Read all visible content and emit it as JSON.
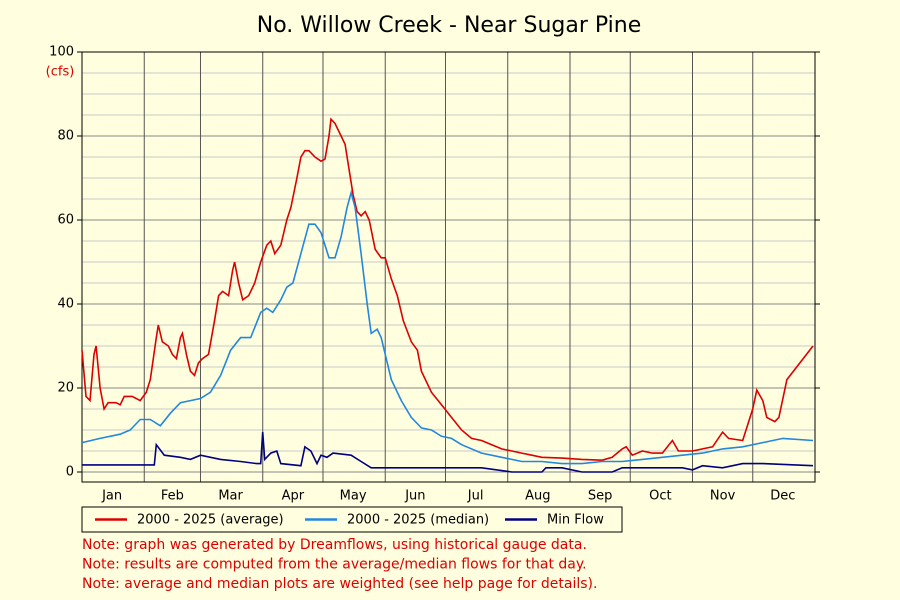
{
  "chart_data": {
    "type": "line",
    "title": "No. Willow Creek - Near Sugar Pine",
    "y_label": "(cfs)",
    "xlim": [
      1,
      366
    ],
    "xticks": [
      {
        "value": 16,
        "label": "Jan"
      },
      {
        "value": 46,
        "label": "Feb"
      },
      {
        "value": 75,
        "label": "Mar"
      },
      {
        "value": 106,
        "label": "Apr"
      },
      {
        "value": 136,
        "label": "May"
      },
      {
        "value": 167,
        "label": "Jun"
      },
      {
        "value": 197,
        "label": "Jul"
      },
      {
        "value": 228,
        "label": "Aug"
      },
      {
        "value": 259,
        "label": "Sep"
      },
      {
        "value": 289,
        "label": "Oct"
      },
      {
        "value": 320,
        "label": "Nov"
      },
      {
        "value": 350,
        "label": "Dec"
      }
    ],
    "xgrid": [
      1,
      32,
      60,
      91,
      121,
      152,
      182,
      213,
      244,
      274,
      305,
      335,
      366
    ],
    "ylim": [
      0,
      100
    ],
    "yticks": [
      0,
      20,
      40,
      60,
      80,
      100
    ],
    "y_minor_grid": [
      5,
      10,
      15,
      25,
      30,
      35,
      45,
      50,
      55,
      65,
      70,
      75,
      85,
      90,
      95
    ],
    "grid": true,
    "series": [
      {
        "name": "2000 - 2025 (average)",
        "color": "#dd0000",
        "x": [
          1,
          3,
          5,
          7,
          8,
          10,
          12,
          14,
          18,
          20,
          22,
          26,
          30,
          33,
          35,
          38,
          39,
          41,
          44,
          46,
          48,
          50,
          51,
          53,
          55,
          57,
          59,
          61,
          64,
          67,
          69,
          71,
          74,
          76,
          77,
          79,
          81,
          84,
          87,
          90,
          93,
          95,
          97,
          100,
          103,
          105,
          108,
          110,
          112,
          114,
          117,
          120,
          122,
          124,
          125,
          127,
          130,
          132,
          134,
          136,
          138,
          140,
          142,
          144,
          147,
          150,
          152,
          155,
          158,
          161,
          165,
          168,
          170,
          175,
          180,
          185,
          190,
          195,
          200,
          205,
          210,
          215,
          220,
          225,
          230,
          240,
          250,
          260,
          265,
          270,
          272,
          275,
          280,
          285,
          290,
          295,
          298,
          305,
          310,
          315,
          320,
          323,
          330,
          335,
          337,
          340,
          342,
          346,
          348,
          352,
          365
        ],
        "values": [
          29,
          18,
          17,
          28,
          30,
          20,
          15,
          16.5,
          16.5,
          16,
          18,
          18,
          17,
          19,
          22,
          32,
          35,
          31,
          30,
          28,
          27,
          32,
          33,
          28,
          24,
          23,
          26,
          27,
          28,
          36,
          42,
          43,
          42,
          48,
          50,
          45,
          41,
          42,
          45,
          50,
          54,
          55,
          52,
          54,
          60,
          63,
          70,
          75,
          76.5,
          76.5,
          75,
          74,
          74.5,
          80,
          84,
          83,
          80,
          78,
          72,
          66,
          62,
          61,
          62,
          60,
          53,
          51,
          51,
          46,
          42,
          36,
          31,
          29,
          24,
          19,
          16,
          13,
          10,
          8,
          7.5,
          6.5,
          5.5,
          5,
          4.5,
          4,
          3.5,
          3.3,
          3,
          2.8,
          3.5,
          5.5,
          6,
          4,
          5,
          4.5,
          4.5,
          7.5,
          5,
          5,
          5.5,
          6,
          9.5,
          8,
          7.5,
          15,
          19.5,
          17,
          13,
          12,
          13,
          22,
          30
        ]
      },
      {
        "name": "2000 - 2025 (median)",
        "color": "#2288dd",
        "x": [
          1,
          10,
          20,
          25,
          30,
          35,
          40,
          45,
          50,
          55,
          60,
          65,
          70,
          75,
          80,
          85,
          90,
          93,
          96,
          100,
          103,
          106,
          110,
          114,
          117,
          120,
          124,
          127,
          130,
          133,
          135,
          137,
          140,
          143,
          145,
          148,
          150,
          155,
          160,
          165,
          170,
          175,
          180,
          185,
          190,
          200,
          210,
          220,
          230,
          240,
          250,
          260,
          270,
          280,
          290,
          300,
          310,
          320,
          330,
          340,
          350,
          365
        ],
        "values": [
          7,
          8,
          9,
          10,
          12.5,
          12.5,
          11,
          14,
          16.5,
          17,
          17.5,
          19,
          23,
          29,
          32,
          32,
          38,
          39,
          38,
          41,
          44,
          45,
          52,
          59,
          59,
          57,
          51,
          51,
          56,
          63,
          66.5,
          63,
          52,
          40,
          33,
          34,
          32,
          22,
          17,
          13,
          10.5,
          10,
          8.5,
          8,
          6.5,
          4.5,
          3.5,
          2.5,
          2.5,
          2,
          2,
          2.5,
          2.5,
          3,
          3.5,
          4,
          4.5,
          5.5,
          6,
          7,
          8,
          7.5
        ]
      },
      {
        "name": "Min Flow",
        "color": "#000080",
        "x": [
          1,
          30,
          37,
          38,
          42,
          50,
          55,
          60,
          70,
          80,
          88,
          90,
          91,
          92,
          95,
          98,
          100,
          110,
          112,
          115,
          118,
          120,
          123,
          126,
          135,
          140,
          145,
          150,
          160,
          200,
          215,
          230,
          232,
          240,
          250,
          265,
          270,
          300,
          305,
          310,
          320,
          330,
          340,
          365
        ],
        "values": [
          1.7,
          1.7,
          1.7,
          6.5,
          4,
          3.5,
          3,
          4,
          3,
          2.5,
          2,
          2,
          9.5,
          3,
          4.5,
          5,
          2,
          1.5,
          6,
          5,
          2,
          4,
          3.5,
          4.5,
          4,
          2.5,
          1,
          1,
          1,
          1,
          0,
          0,
          1,
          1,
          0,
          0,
          1,
          1,
          0.5,
          1.5,
          1,
          2,
          2,
          1.5
        ]
      }
    ],
    "legend": "bottom-left",
    "notes": [
      "Note: graph was generated by Dreamflows, using historical gauge data.",
      "Note: results are computed from the average/median flows for that day.",
      "Note: average and median plots are weighted (see help page for details)."
    ]
  }
}
